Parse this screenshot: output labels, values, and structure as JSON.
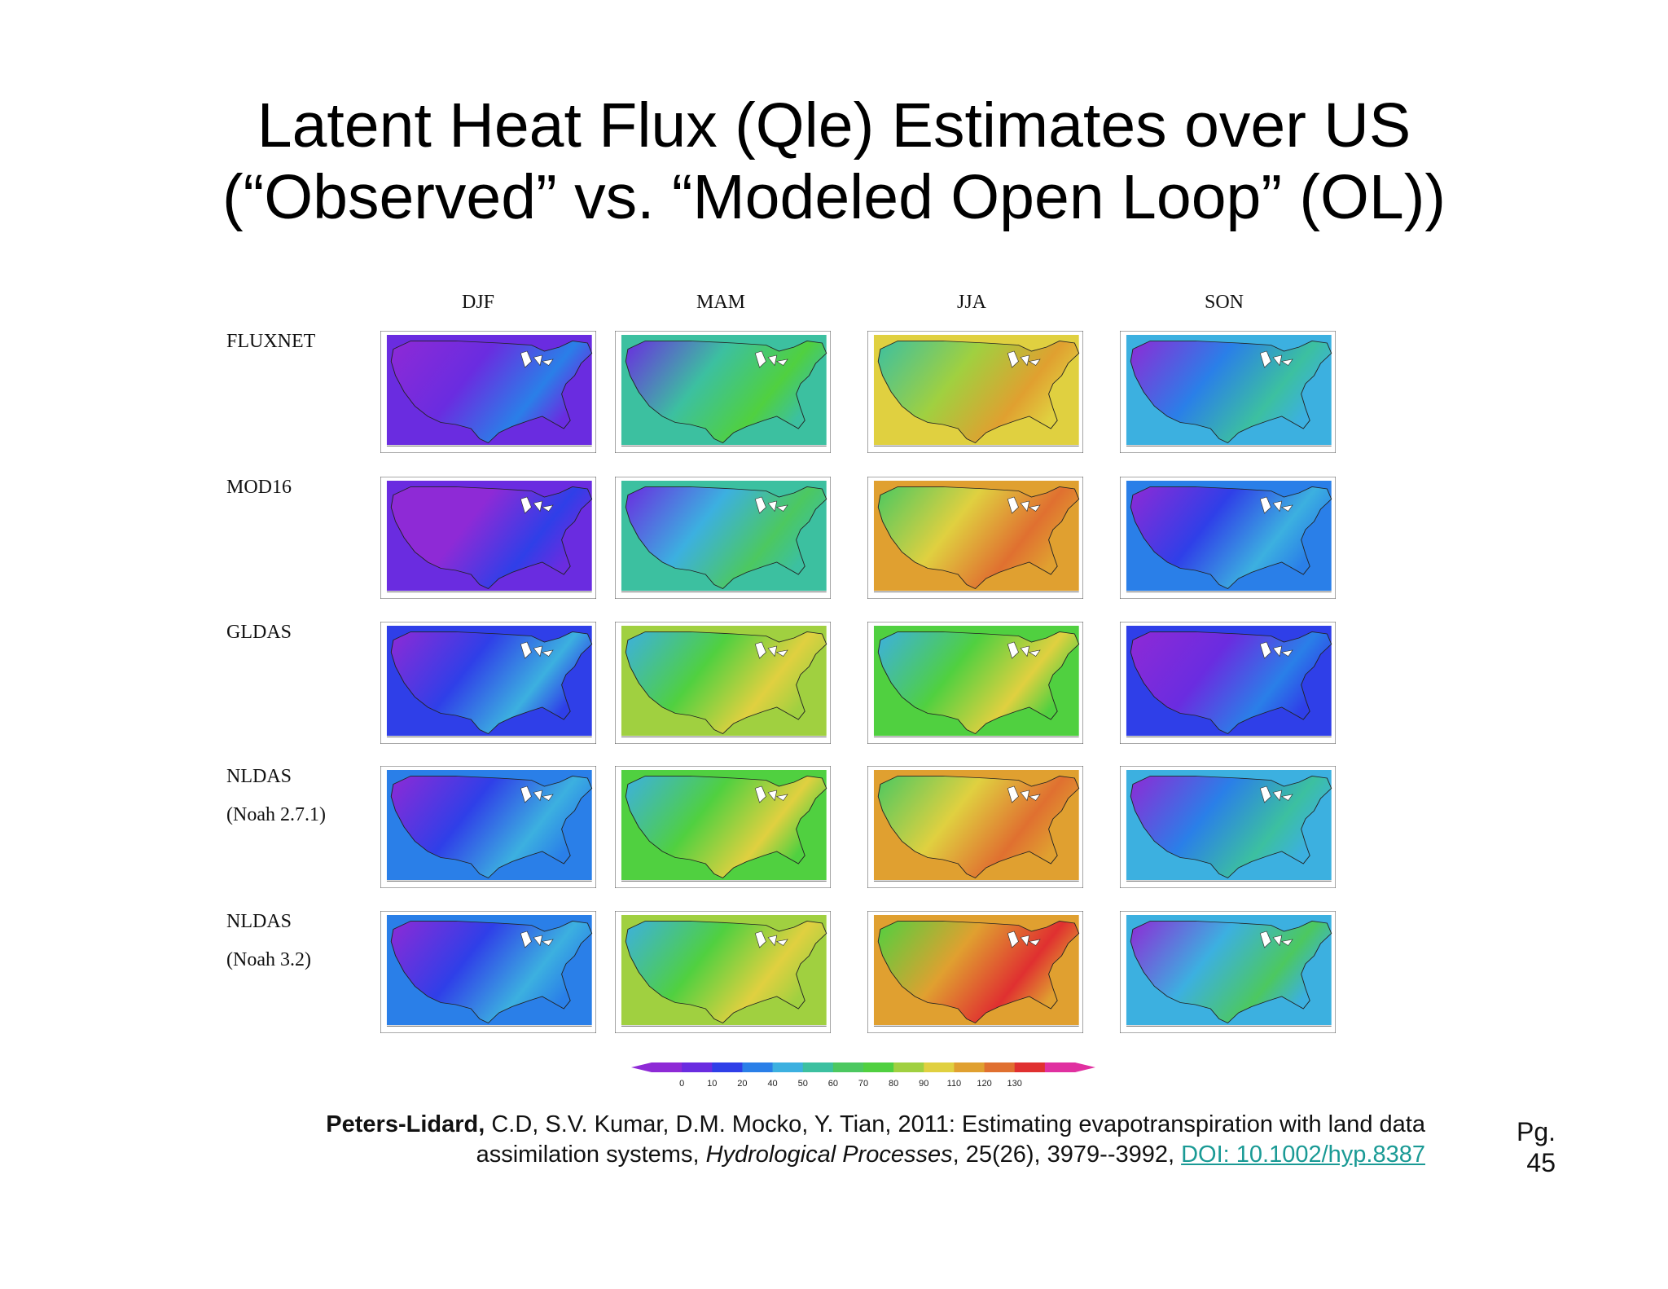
{
  "slide": {
    "title_line1": "Latent Heat Flux (Qle) Estimates over US",
    "title_line2": "(“Observed” vs. “Modeled Open Loop” (OL))"
  },
  "figure": {
    "seasons": [
      "DJF",
      "MAM",
      "JJA",
      "SON"
    ],
    "rows": [
      {
        "label": "FLUXNET",
        "sublabel": "",
        "levels": [
          0.05,
          0.35,
          0.62,
          0.22
        ]
      },
      {
        "label": "MOD16",
        "sublabel": "",
        "levels": [
          0.02,
          0.3,
          0.7,
          0.18
        ]
      },
      {
        "label": "GLDAS",
        "sublabel": "",
        "levels": [
          0.12,
          0.55,
          0.52,
          0.1
        ]
      },
      {
        "label": "NLDAS",
        "sublabel": "(Noah 2.7.1)",
        "levels": [
          0.15,
          0.52,
          0.72,
          0.25
        ]
      },
      {
        "label": "NLDAS",
        "sublabel": "(Noah 3.2)",
        "levels": [
          0.18,
          0.55,
          0.75,
          0.28
        ]
      }
    ],
    "colorbar": {
      "ticks": [
        "0",
        "10",
        "20",
        "40",
        "50",
        "60",
        "70",
        "80",
        "90",
        "110",
        "120",
        "130"
      ],
      "colors": [
        "#8e2ad6",
        "#6a2ce0",
        "#2f3fe8",
        "#2a7fe8",
        "#3cb0e0",
        "#3cc0a0",
        "#4cc860",
        "#50d040",
        "#a0d040",
        "#e0d040",
        "#e0a030",
        "#e07030",
        "#e03030",
        "#e030a0"
      ]
    }
  },
  "citation": {
    "authors_bold": "Peters-Lidard,",
    "authors_rest": " C.D, S.V. Kumar, D.M. Mocko, Y. Tian, 2011:   Estimating evapotranspiration with land data",
    "line2_pre": "assimilation systems, ",
    "journal": "Hydrological Processes",
    "line2_post": ", 25(26), 3979--3992, ",
    "doi": "DOI: 10.1002/hyp.8387"
  },
  "page": {
    "prefix": "Pg.",
    "number": "45"
  }
}
